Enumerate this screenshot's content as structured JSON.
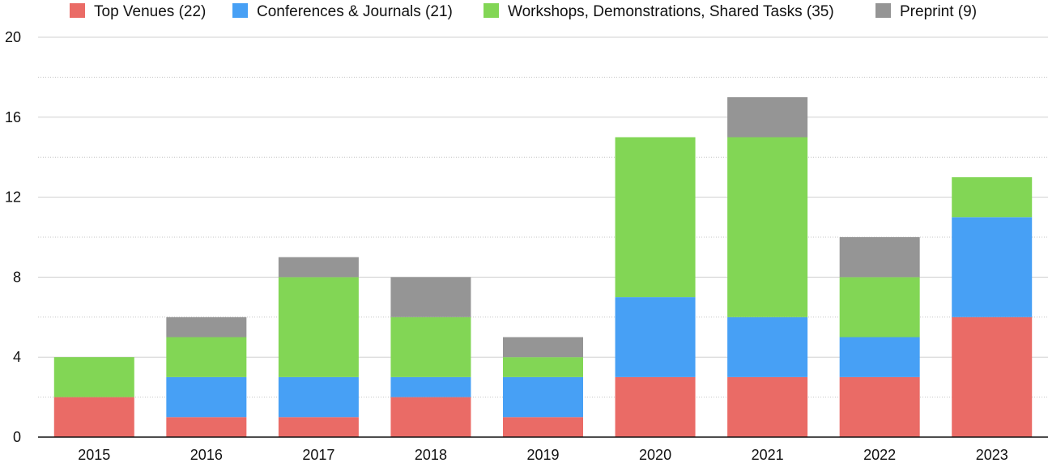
{
  "chart_data": {
    "type": "bar",
    "stacked": true,
    "categories": [
      "2015",
      "2016",
      "2017",
      "2018",
      "2019",
      "2020",
      "2021",
      "2022",
      "2023"
    ],
    "series": [
      {
        "name": "Top Venues (22)",
        "color": "#EA6B66",
        "values": [
          2,
          1,
          1,
          2,
          1,
          3,
          3,
          3,
          6
        ]
      },
      {
        "name": "Conferences & Journals (21)",
        "color": "#47A0F5",
        "values": [
          0,
          2,
          2,
          1,
          2,
          4,
          3,
          2,
          5
        ]
      },
      {
        "name": "Workshops, Demonstrations, Shared Tasks (35)",
        "color": "#82D655",
        "values": [
          2,
          2,
          5,
          3,
          1,
          8,
          9,
          3,
          2
        ]
      },
      {
        "name": "Preprint (9)",
        "color": "#959595",
        "values": [
          0,
          1,
          1,
          2,
          1,
          0,
          2,
          2,
          0
        ]
      }
    ],
    "ylim": [
      0,
      20
    ],
    "yticks": [
      "0",
      "4",
      "8",
      "12",
      "16",
      "20"
    ],
    "grid": true,
    "legend_position": "top"
  }
}
